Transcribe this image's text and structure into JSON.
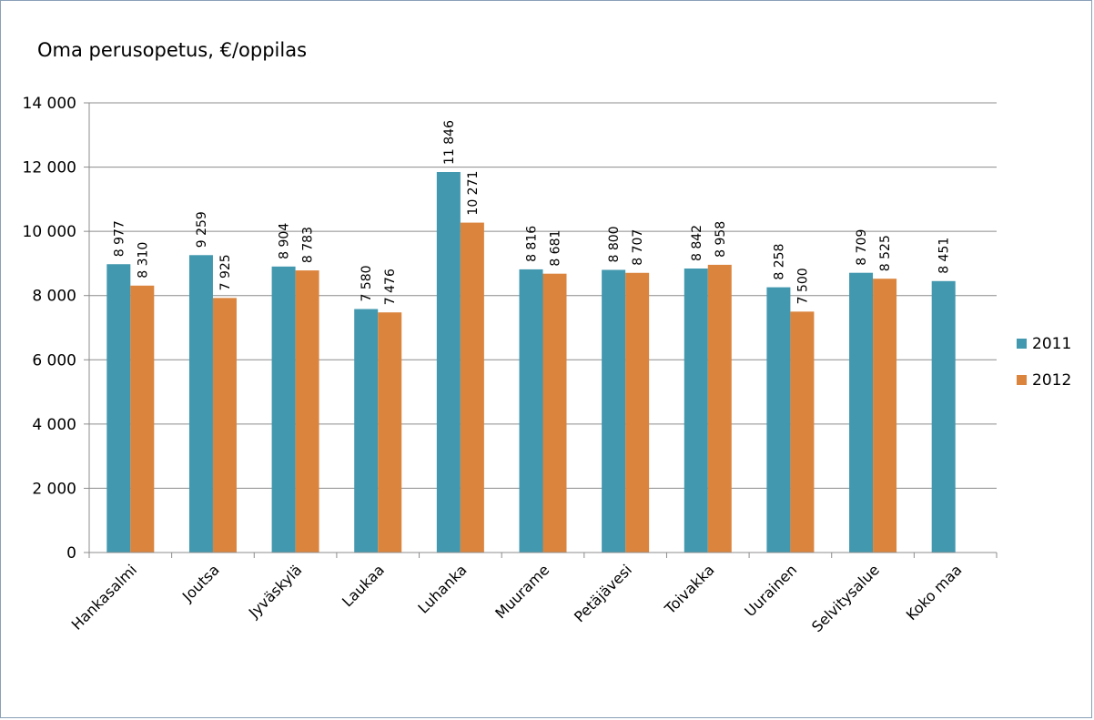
{
  "chart_data": {
    "type": "bar",
    "title": "Oma perusopetus, €/oppilas",
    "xlabel": "",
    "ylabel": "",
    "ylim": [
      0,
      14000
    ],
    "y_ticks": [
      0,
      2000,
      4000,
      6000,
      8000,
      10000,
      12000,
      14000
    ],
    "y_tick_labels": [
      "0",
      "2 000",
      "4 000",
      "6 000",
      "8 000",
      "10 000",
      "12 000",
      "14 000"
    ],
    "grid": true,
    "legend_position": "right",
    "categories": [
      "Hankasalmi",
      "Joutsa",
      "Jyväskylä",
      "Laukaa",
      "Luhanka",
      "Muurame",
      "Petäjävesi",
      "Toivakka",
      "Uurainen",
      "Selvitysalue",
      "Koko maa"
    ],
    "series": [
      {
        "name": "2011",
        "color": "#4198af",
        "values": [
          8977,
          9259,
          8904,
          7580,
          11846,
          8816,
          8800,
          8842,
          8258,
          8709,
          8451
        ],
        "labels": [
          "8 977",
          "9 259",
          "8 904",
          "7 580",
          "11 846",
          "8 816",
          "8 800",
          "8 842",
          "8 258",
          "8 709",
          "8 451"
        ]
      },
      {
        "name": "2012",
        "color": "#db843d",
        "values": [
          8310,
          7925,
          8783,
          7476,
          10271,
          8681,
          8707,
          8958,
          7500,
          8525,
          null
        ],
        "labels": [
          "8 310",
          "7 925",
          "8 783",
          "7 476",
          "10 271",
          "8 681",
          "8 707",
          "8 958",
          "7 500",
          "8 525",
          null
        ]
      }
    ]
  }
}
